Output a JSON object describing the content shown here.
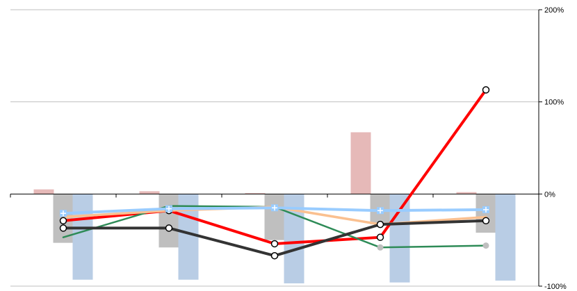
{
  "chart_data": {
    "type": "bar",
    "title": "",
    "xlabel": "",
    "ylabel": "",
    "categories": [
      "",
      "",
      "",
      "",
      ""
    ],
    "ylim": [
      -100,
      200
    ],
    "y_axis_side": "right",
    "y_ticks": [
      {
        "value": 200,
        "label": "200%"
      },
      {
        "value": 100,
        "label": "100%"
      },
      {
        "value": 0,
        "label": "0%"
      },
      {
        "value": -100,
        "label": "-100%"
      }
    ],
    "grid": true,
    "legend": "none",
    "bar_series": [
      {
        "color": "#e6b9b8",
        "values": [
          5,
          3,
          1,
          67,
          2
        ]
      },
      {
        "color": "#bfbfbf",
        "values": [
          -53,
          -58,
          -50,
          -33,
          -42
        ]
      },
      {
        "color": "#b9cde5",
        "values": [
          -93,
          -93,
          -97,
          -96,
          -94
        ]
      }
    ],
    "line_series": [
      {
        "color": "#ff0000",
        "marker": "circle",
        "values": [
          -29,
          -18,
          -54,
          -47,
          113
        ]
      },
      {
        "color": "#2e8b57",
        "marker": "none",
        "last_marker": "grey-dot",
        "values": [
          -47,
          -13,
          -14,
          -58,
          -56
        ]
      },
      {
        "color": "#fac090",
        "marker": "none",
        "values": [
          -25,
          -18,
          -14,
          -33,
          -25
        ]
      },
      {
        "color": "#333333",
        "marker": "circle",
        "values": [
          -37,
          -37,
          -67,
          -33,
          -29
        ]
      },
      {
        "color": "#99ccff",
        "marker": "plus",
        "values": [
          -21,
          -16,
          -15,
          -18,
          -17
        ]
      }
    ]
  }
}
